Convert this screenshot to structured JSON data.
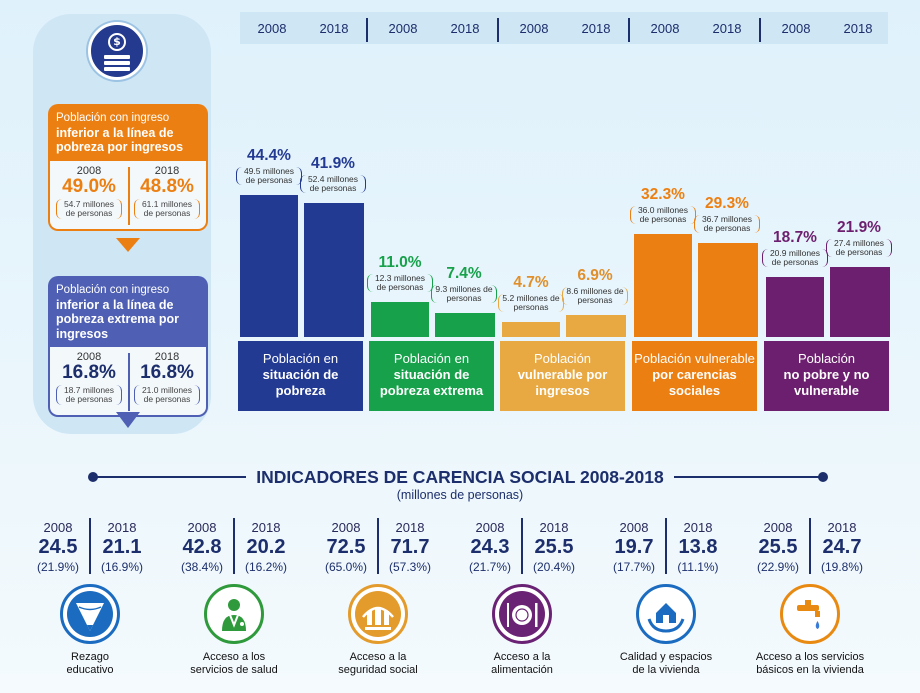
{
  "left": {
    "income_poverty": {
      "title_light": "Población con ingreso",
      "title_bold": "inferior a la línea de pobreza por ingresos",
      "y2008": "2008",
      "p2008": "49.0%",
      "n2008": "54.7 millones de personas",
      "y2018": "2018",
      "p2018": "48.8%",
      "n2018": "61.1 millones de personas"
    },
    "income_extreme": {
      "title_light": "Población con ingreso",
      "title_bold": "inferior a la línea de pobreza extrema por ingresos",
      "y2008": "2008",
      "p2008": "16.8%",
      "n2008": "18.7 millones de personas",
      "y2018": "2018",
      "p2018": "16.8%",
      "n2018": "21.0 millones de personas"
    }
  },
  "years": [
    "2008",
    "2018",
    "2008",
    "2018",
    "2008",
    "2018",
    "2008",
    "2018",
    "2008",
    "2018"
  ],
  "chart_data": {
    "type": "bar",
    "categories": [
      "Población en situación de pobreza",
      "Población en situación de pobreza extrema",
      "Población vulnerable por ingresos",
      "Población vulnerable por carencias sociales",
      "Población no pobre y no vulnerable"
    ],
    "series": [
      {
        "name": "2008",
        "values": [
          44.4,
          11.0,
          4.7,
          32.3,
          18.7
        ]
      },
      {
        "name": "2018",
        "values": [
          41.9,
          7.4,
          6.9,
          29.3,
          21.9
        ]
      }
    ],
    "pct_labels": [
      [
        "44.4%",
        "41.9%"
      ],
      [
        "11.0%",
        "7.4%"
      ],
      [
        "4.7%",
        "6.9%"
      ],
      [
        "32.3%",
        "29.3%"
      ],
      [
        "18.7%",
        "21.9%"
      ]
    ],
    "people_labels": [
      [
        "49.5 millones de personas",
        "52.4 millones de personas"
      ],
      [
        "12.3 millones de personas",
        "9.3 millones de personas"
      ],
      [
        "5.2 millones de personas",
        "8.6 millones de personas"
      ],
      [
        "36.0 millones de personas",
        "36.7 millones de personas"
      ],
      [
        "20.9 millones de personas",
        "27.4 millones de personas"
      ]
    ],
    "colors": [
      "#233a93",
      "#16a14a",
      "#e8a842",
      "#ec7f12",
      "#6c1f6e"
    ],
    "category_lines": [
      [
        "Población en",
        "situación de",
        "pobreza"
      ],
      [
        "Población en",
        "situación de",
        "pobreza extrema"
      ],
      [
        "Población",
        "vulnerable por",
        "ingresos"
      ],
      [
        "Población vulnerable",
        "por carencias",
        "sociales"
      ],
      [
        "Población",
        "no pobre y no",
        "vulnerable"
      ]
    ],
    "category_bold_from": [
      1,
      1,
      1,
      1,
      1
    ]
  },
  "indicators_title": "INDICADORES DE CARENCIA SOCIAL 2008-2018",
  "indicators_subtitle": "(millones de personas)",
  "indicators": [
    {
      "y1": "2008",
      "y2": "2018",
      "v1": "24.5",
      "v2": "21.1",
      "p1": "(21.9%)",
      "p2": "(16.9%)",
      "label": [
        "Rezago",
        "educativo"
      ],
      "color": "#1b6cc0",
      "icon": "pencil-icon"
    },
    {
      "y1": "2008",
      "y2": "2018",
      "v1": "42.8",
      "v2": "20.2",
      "p1": "(38.4%)",
      "p2": "(16.2%)",
      "label": [
        "Acceso a los",
        "servicios de salud"
      ],
      "color": "#2f9a3c",
      "icon": "doctor-icon"
    },
    {
      "y1": "2008",
      "y2": "2018",
      "v1": "72.5",
      "v2": "71.7",
      "p1": "(65.0%)",
      "p2": "(57.3%)",
      "label": [
        "Acceso a la",
        "seguridad social"
      ],
      "color": "#e39b2c",
      "icon": "social-security-icon"
    },
    {
      "y1": "2008",
      "y2": "2018",
      "v1": "24.3",
      "v2": "25.5",
      "p1": "(21.7%)",
      "p2": "(20.4%)",
      "label": [
        "Acceso a la",
        "alimentación"
      ],
      "color": "#6a2374",
      "icon": "plate-icon"
    },
    {
      "y1": "2008",
      "y2": "2018",
      "v1": "19.7",
      "v2": "13.8",
      "p1": "(17.7%)",
      "p2": "(11.1%)",
      "label": [
        "Calidad y espacios",
        "de la vivienda"
      ],
      "color": "#1b6cc0",
      "icon": "house-hands-icon"
    },
    {
      "y1": "2008",
      "y2": "2018",
      "v1": "25.5",
      "v2": "24.7",
      "p1": "(22.9%)",
      "p2": "(19.8%)",
      "label": [
        "Acceso a los servicios",
        "básicos en la vivienda"
      ],
      "color": "#e88a12",
      "icon": "faucet-icon"
    }
  ]
}
